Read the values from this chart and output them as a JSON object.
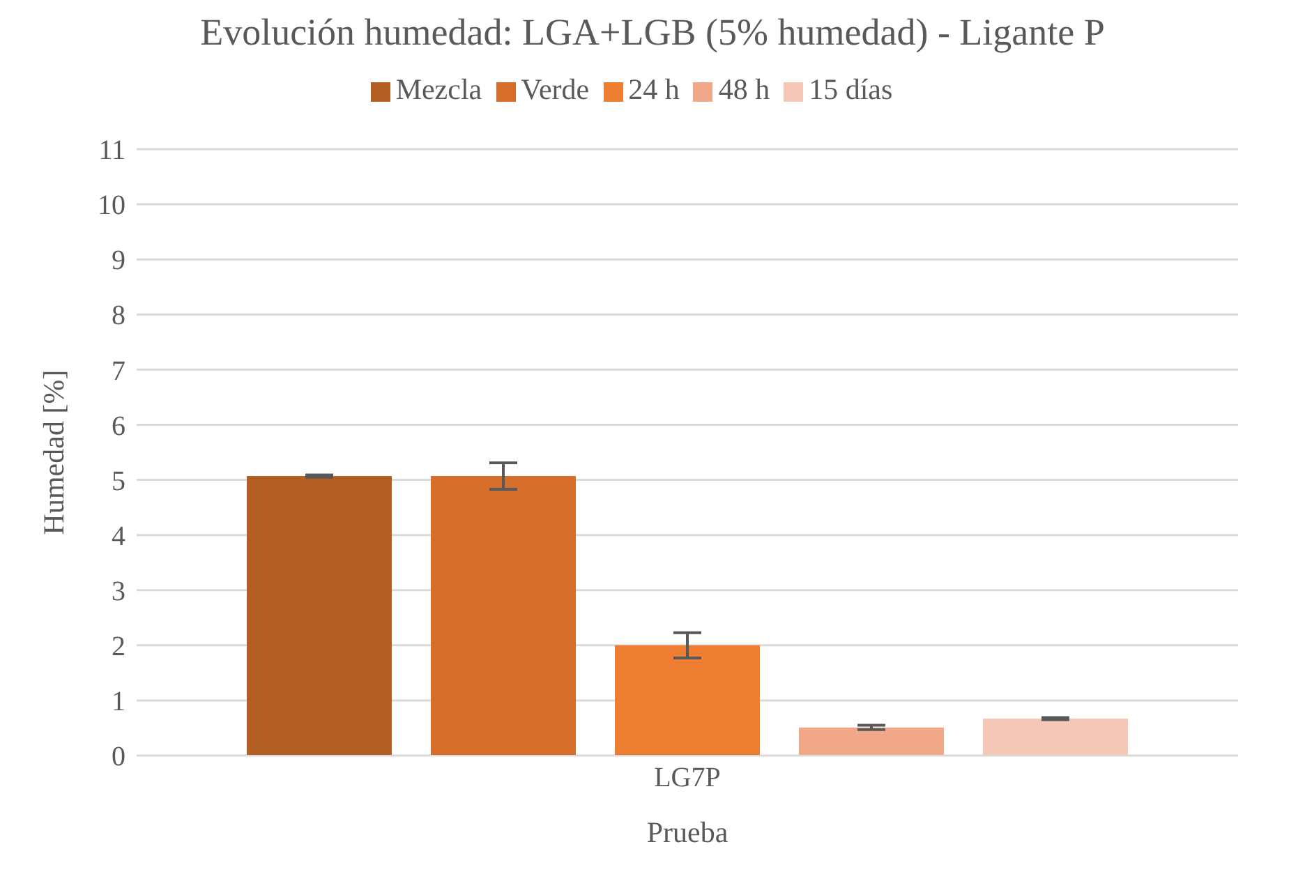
{
  "chart_data": {
    "type": "bar",
    "title": "Evolución humedad: LGA+LGB (5% humedad) - Ligante P",
    "xlabel": "Prueba",
    "ylabel": "Humedad [%]",
    "categories": [
      "LG7P"
    ],
    "series": [
      {
        "name": "Mezcla",
        "color": "#b35e22",
        "values": [
          5.07
        ],
        "errors": [
          0.02
        ]
      },
      {
        "name": "Verde",
        "color": "#d46e2a",
        "values": [
          5.07
        ],
        "errors": [
          0.24
        ]
      },
      {
        "name": "24 h",
        "color": "#ed7d31",
        "values": [
          2.0
        ],
        "errors": [
          0.23
        ]
      },
      {
        "name": "48 h",
        "color": "#f1a889",
        "values": [
          0.51
        ],
        "errors": [
          0.04
        ]
      },
      {
        "name": "15 días",
        "color": "#f4c7b6",
        "values": [
          0.67
        ],
        "errors": [
          0.02
        ]
      }
    ],
    "ylim": [
      0,
      11
    ],
    "yticks": [
      0,
      1,
      2,
      3,
      4,
      5,
      6,
      7,
      8,
      9,
      10,
      11
    ],
    "grid": "y",
    "legend": "top"
  }
}
